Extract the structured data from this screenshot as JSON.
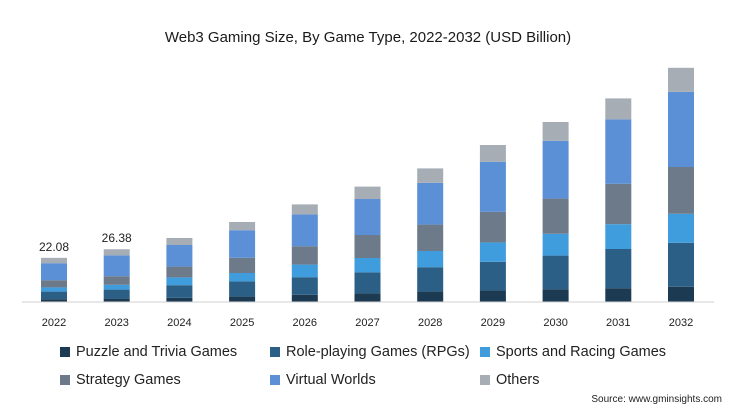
{
  "chart_data": {
    "type": "bar",
    "stacked": true,
    "title": "Web3 Gaming Size, By Game Type, 2022-2032 (USD Billion)",
    "categories": [
      "2022",
      "2023",
      "2024",
      "2025",
      "2026",
      "2027",
      "2028",
      "2029",
      "2030",
      "2031",
      "2032"
    ],
    "series": [
      {
        "name": "Puzzle and Trivia Games",
        "color": "#1c3a52",
        "values": [
          1.4,
          1.7,
          2.1,
          2.7,
          3.6,
          4.3,
          5.2,
          5.8,
          6.4,
          6.9,
          7.6
        ]
      },
      {
        "name": "Role-playing Games (RPGs)",
        "color": "#2c5f85",
        "values": [
          3.8,
          4.5,
          6.3,
          7.6,
          8.8,
          10.5,
          12.2,
          14.3,
          16.8,
          19.6,
          22.0
        ]
      },
      {
        "name": "Sports and Racing Games",
        "color": "#3f9ddd",
        "values": [
          2.1,
          2.4,
          3.9,
          4.2,
          6.3,
          7.2,
          8.1,
          9.7,
          10.9,
          12.4,
          14.5
        ]
      },
      {
        "name": "Strategy Games",
        "color": "#6c7a8a",
        "values": [
          3.6,
          4.3,
          5.4,
          7.6,
          9.2,
          11.5,
          13.2,
          15.3,
          17.6,
          20.2,
          23.4
        ]
      },
      {
        "name": "Virtual Worlds",
        "color": "#5b8fd6",
        "values": [
          8.5,
          10.4,
          10.8,
          13.8,
          15.9,
          18.0,
          20.9,
          25.0,
          28.9,
          32.2,
          37.6
        ]
      },
      {
        "name": "Others",
        "color": "#a7adb4",
        "values": [
          2.68,
          3.08,
          3.5,
          4.1,
          5.0,
          6.2,
          7.2,
          8.4,
          9.4,
          10.5,
          12.0
        ]
      }
    ],
    "data_labels": [
      {
        "category": "2022",
        "text": "22.08"
      },
      {
        "category": "2023",
        "text": "26.38"
      }
    ],
    "ylim": [
      0,
      120
    ],
    "xlabel": "",
    "ylabel": "",
    "legend_position": "bottom",
    "source": "Source: www.gminsights.com"
  }
}
